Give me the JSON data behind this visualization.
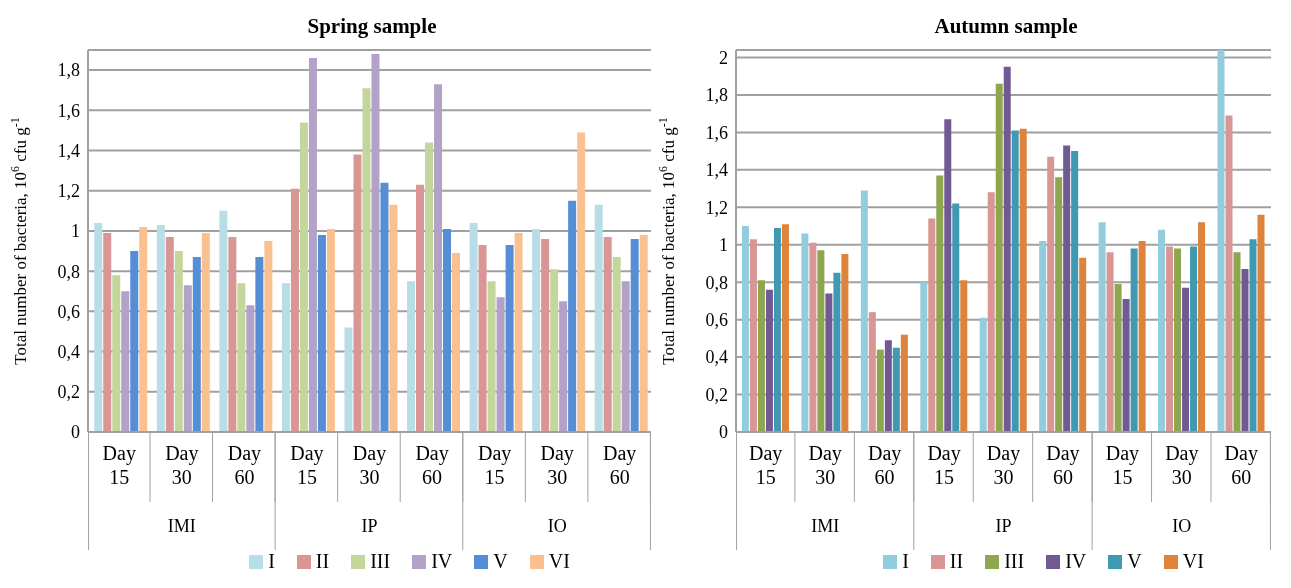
{
  "chart_data": [
    {
      "type": "bar",
      "title": "Spring sample",
      "ylabel": "Total number of bacteria, 10$^{6}$ cfu g$^{-1}$",
      "categories": [
        "Day 15",
        "Day 30",
        "Day 60",
        "Day 15",
        "Day 30",
        "Day 60",
        "Day 15",
        "Day 30",
        "Day 60"
      ],
      "annotations": [
        "IMI",
        "IP",
        "IO"
      ],
      "series": [
        {
          "name": "I",
          "color": "#b7dde6",
          "values": [
            1.04,
            1.03,
            1.1,
            0.74,
            0.52,
            0.75,
            1.04,
            1.01,
            1.13
          ]
        },
        {
          "name": "II",
          "color": "#d99694",
          "values": [
            0.99,
            0.97,
            0.97,
            1.21,
            1.38,
            1.23,
            0.93,
            0.96,
            0.97
          ]
        },
        {
          "name": "III",
          "color": "#c3d69b",
          "values": [
            0.78,
            0.9,
            0.74,
            1.54,
            1.71,
            1.44,
            0.75,
            0.81,
            0.87
          ]
        },
        {
          "name": "IV",
          "color": "#b2a2c7",
          "values": [
            0.7,
            0.73,
            0.63,
            1.86,
            1.88,
            1.73,
            0.67,
            0.65,
            0.75
          ]
        },
        {
          "name": "V",
          "color": "#558ed5",
          "values": [
            0.9,
            0.87,
            0.87,
            0.98,
            1.24,
            1.01,
            0.93,
            1.15,
            0.96
          ]
        },
        {
          "name": "VI",
          "color": "#fac090",
          "values": [
            1.02,
            0.99,
            0.95,
            1.01,
            1.13,
            0.89,
            0.99,
            1.49,
            0.98
          ]
        }
      ],
      "ylim": [
        0,
        1.9
      ],
      "yticks": [
        0,
        {
          "value": 0.2,
          "label": "0,2"
        },
        {
          "value": 0.4,
          "label": "0,4"
        },
        {
          "value": 0.6,
          "label": "0,6"
        },
        {
          "value": 0.8,
          "label": "0,8"
        },
        1,
        {
          "value": 1.2,
          "label": "1,2"
        },
        {
          "value": 1.4,
          "label": "1,4"
        },
        {
          "value": 1.6,
          "label": "1,6"
        },
        {
          "value": 1.8,
          "label": "1,8"
        }
      ],
      "grid": "y",
      "legend": "bottom"
    },
    {
      "type": "bar",
      "title": "Autumn sample",
      "ylabel": "Total number of bacteria, 10$^{6}$ cfu g$^{-1}$",
      "categories": [
        "Day 15",
        "Day 30",
        "Day 60",
        "Day 15",
        "Day 30",
        "Day 60",
        "Day 15",
        "Day 30",
        "Day 60"
      ],
      "annotations": [
        "IMI",
        "IP",
        "IO"
      ],
      "series": [
        {
          "name": "I",
          "color": "#93cddd",
          "values": [
            1.1,
            1.06,
            1.29,
            0.8,
            0.61,
            1.02,
            1.12,
            1.08,
            2.04
          ]
        },
        {
          "name": "II",
          "color": "#d99694",
          "values": [
            1.03,
            1.01,
            0.64,
            1.14,
            1.28,
            1.47,
            0.96,
            0.99,
            1.69
          ]
        },
        {
          "name": "III",
          "color": "#8ea64d",
          "values": [
            0.81,
            0.97,
            0.44,
            1.37,
            1.86,
            1.36,
            0.79,
            0.98,
            0.96
          ]
        },
        {
          "name": "IV",
          "color": "#715a93",
          "values": [
            0.76,
            0.74,
            0.49,
            1.67,
            1.95,
            1.53,
            0.71,
            0.77,
            0.87
          ]
        },
        {
          "name": "V",
          "color": "#4099b1",
          "values": [
            1.09,
            0.85,
            0.45,
            1.22,
            1.61,
            1.5,
            0.98,
            0.99,
            1.03
          ]
        },
        {
          "name": "VI",
          "color": "#dd833b",
          "values": [
            1.11,
            0.95,
            0.52,
            0.81,
            1.62,
            0.93,
            1.02,
            1.12,
            1.16
          ]
        }
      ],
      "ylim": [
        0,
        2.04
      ],
      "yticks": [
        0,
        {
          "value": 0.2,
          "label": "0,2"
        },
        {
          "value": 0.4,
          "label": "0,4"
        },
        {
          "value": 0.6,
          "label": "0,6"
        },
        {
          "value": 0.8,
          "label": "0,8"
        },
        1,
        {
          "value": 1.2,
          "label": "1,2"
        },
        {
          "value": 1.4,
          "label": "1,4"
        },
        {
          "value": 1.6,
          "label": "1,6"
        },
        {
          "value": 1.8,
          "label": "1,8"
        },
        2
      ],
      "grid": "y",
      "legend": "bottom"
    }
  ]
}
